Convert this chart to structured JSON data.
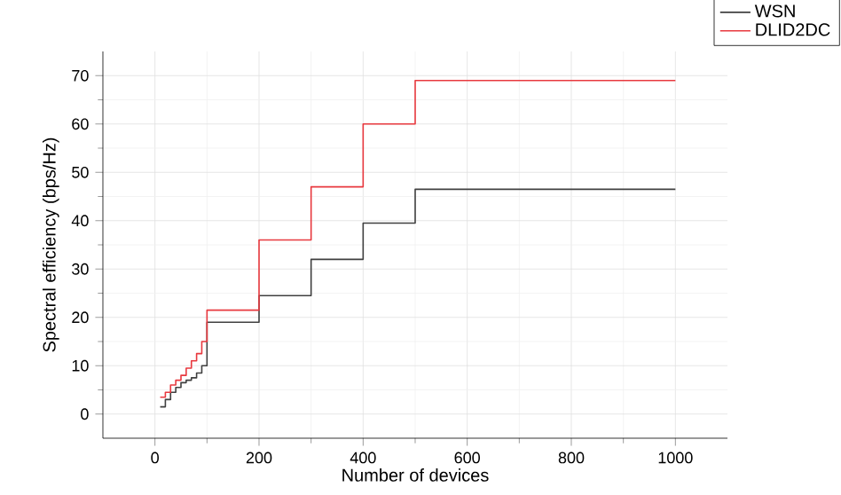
{
  "chart_data": {
    "type": "step",
    "xlabel": "Number of devices",
    "ylabel": "Spectral efficiency (bps/Hz)",
    "x": [
      10,
      20,
      30,
      40,
      50,
      60,
      70,
      80,
      90,
      100,
      200,
      300,
      400,
      500,
      1000
    ],
    "series": [
      {
        "name": "WSN",
        "color": "#404040",
        "values": [
          1.5,
          3,
          4.5,
          5.5,
          6.5,
          7,
          7.5,
          8.5,
          10,
          19,
          24.5,
          32,
          39.5,
          46.5,
          46.5
        ]
      },
      {
        "name": "DLID2DC",
        "color": "#e8393f",
        "values": [
          3.5,
          4.5,
          6,
          7,
          8,
          9.5,
          11,
          12.5,
          15,
          21.5,
          36,
          47,
          60,
          69,
          69
        ]
      }
    ],
    "xlim": [
      -100,
      1100
    ],
    "ylim": [
      -5,
      75
    ],
    "xticks": [
      0,
      200,
      400,
      600,
      800,
      1000
    ],
    "yticks": [
      0,
      10,
      20,
      30,
      40,
      50,
      60,
      70
    ],
    "grid": true,
    "legend": "top right",
    "line_style": "solid",
    "marker": "none"
  }
}
